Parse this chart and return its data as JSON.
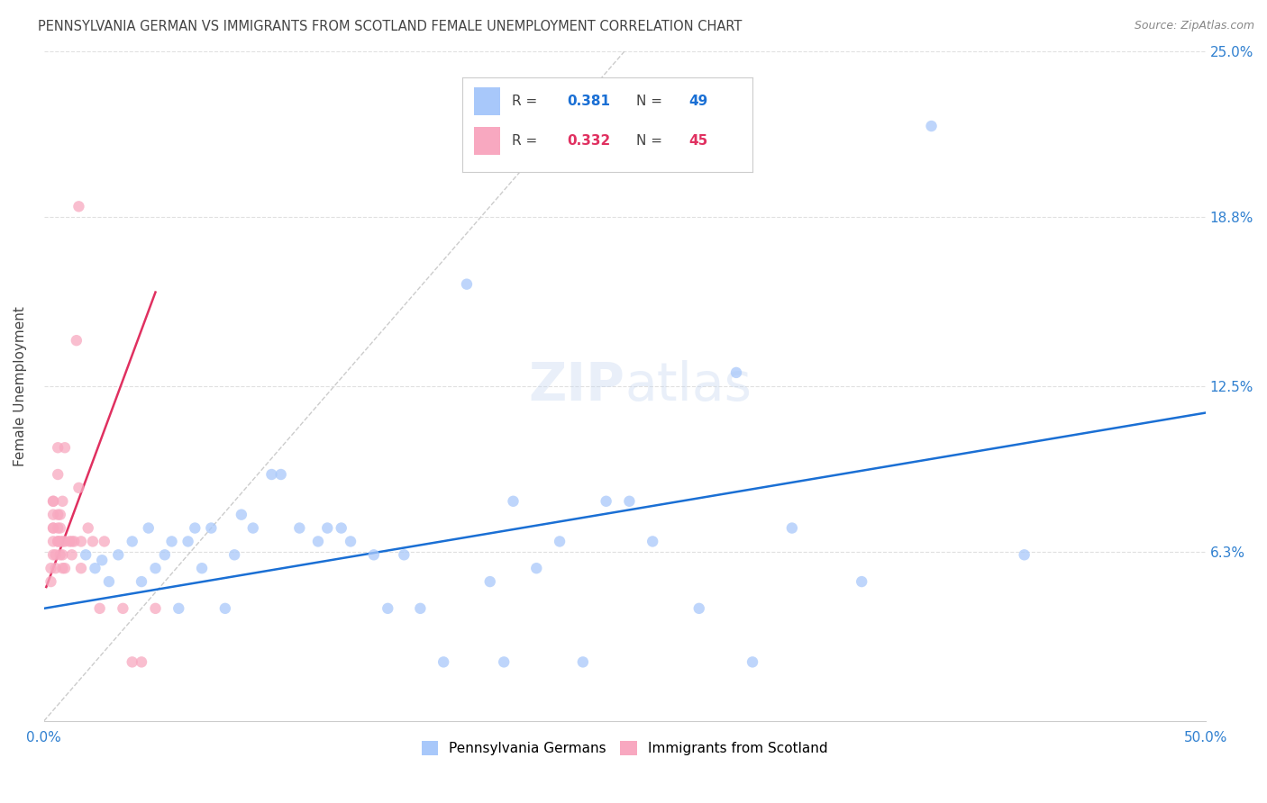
{
  "title": "PENNSYLVANIA GERMAN VS IMMIGRANTS FROM SCOTLAND FEMALE UNEMPLOYMENT CORRELATION CHART",
  "source": "Source: ZipAtlas.com",
  "ylabel": "Female Unemployment",
  "xlim": [
    0.0,
    0.5
  ],
  "ylim": [
    0.0,
    0.25
  ],
  "ytick_labels_right": [
    "25.0%",
    "18.8%",
    "12.5%",
    "6.3%"
  ],
  "ytick_values_right": [
    0.25,
    0.188,
    0.125,
    0.063
  ],
  "watermark_zip": "ZIP",
  "watermark_atlas": "atlas",
  "blue_scatter_x": [
    0.018,
    0.022,
    0.025,
    0.028,
    0.032,
    0.038,
    0.042,
    0.045,
    0.048,
    0.052,
    0.055,
    0.058,
    0.062,
    0.065,
    0.068,
    0.072,
    0.078,
    0.082,
    0.085,
    0.09,
    0.098,
    0.102,
    0.11,
    0.118,
    0.122,
    0.128,
    0.132,
    0.142,
    0.148,
    0.155,
    0.162,
    0.172,
    0.182,
    0.192,
    0.198,
    0.202,
    0.212,
    0.222,
    0.232,
    0.242,
    0.252,
    0.262,
    0.282,
    0.298,
    0.305,
    0.322,
    0.352,
    0.382,
    0.422
  ],
  "blue_scatter_y": [
    0.062,
    0.057,
    0.06,
    0.052,
    0.062,
    0.067,
    0.052,
    0.072,
    0.057,
    0.062,
    0.067,
    0.042,
    0.067,
    0.072,
    0.057,
    0.072,
    0.042,
    0.062,
    0.077,
    0.072,
    0.092,
    0.092,
    0.072,
    0.067,
    0.072,
    0.072,
    0.067,
    0.062,
    0.042,
    0.062,
    0.042,
    0.022,
    0.163,
    0.052,
    0.022,
    0.082,
    0.057,
    0.067,
    0.022,
    0.082,
    0.082,
    0.067,
    0.042,
    0.13,
    0.022,
    0.072,
    0.052,
    0.222,
    0.062
  ],
  "pink_scatter_x": [
    0.003,
    0.003,
    0.004,
    0.004,
    0.004,
    0.004,
    0.004,
    0.004,
    0.004,
    0.005,
    0.005,
    0.006,
    0.006,
    0.006,
    0.006,
    0.006,
    0.006,
    0.007,
    0.007,
    0.007,
    0.007,
    0.008,
    0.008,
    0.008,
    0.008,
    0.009,
    0.009,
    0.009,
    0.011,
    0.012,
    0.012,
    0.013,
    0.014,
    0.015,
    0.015,
    0.016,
    0.016,
    0.019,
    0.021,
    0.024,
    0.026,
    0.034,
    0.038,
    0.042,
    0.048
  ],
  "pink_scatter_y": [
    0.052,
    0.057,
    0.062,
    0.067,
    0.072,
    0.072,
    0.077,
    0.082,
    0.082,
    0.057,
    0.062,
    0.067,
    0.067,
    0.072,
    0.077,
    0.092,
    0.102,
    0.062,
    0.067,
    0.072,
    0.077,
    0.057,
    0.062,
    0.067,
    0.082,
    0.057,
    0.067,
    0.102,
    0.067,
    0.062,
    0.067,
    0.067,
    0.142,
    0.087,
    0.192,
    0.057,
    0.067,
    0.072,
    0.067,
    0.042,
    0.067,
    0.042,
    0.022,
    0.022,
    0.042
  ],
  "blue_line_x": [
    0.0,
    0.5
  ],
  "blue_line_y": [
    0.042,
    0.115
  ],
  "pink_line_x": [
    0.001,
    0.048
  ],
  "pink_line_y": [
    0.05,
    0.16
  ],
  "scatter_color_blue": "#a8c8fa",
  "scatter_color_pink": "#f8a8c0",
  "line_color_blue": "#1a6fd4",
  "line_color_pink": "#e03060",
  "diagonal_color": "#cccccc",
  "grid_color": "#e0e0e0",
  "title_color": "#444444",
  "axis_label_color": "#444444",
  "right_tick_color": "#3080d0",
  "bottom_tick_color": "#3080d0",
  "background_color": "#ffffff",
  "title_fontsize": 10.5,
  "source_fontsize": 9,
  "scatter_size": 80,
  "scatter_alpha": 0.75,
  "legend_R_color": "#3080d0",
  "legend_N_color": "#e03060",
  "watermark_color": "#c8d8f0",
  "watermark_alpha": 0.4
}
